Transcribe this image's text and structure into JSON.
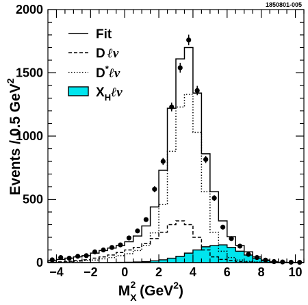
{
  "figure_id": "1850801-005",
  "chart_data": {
    "type": "line",
    "xlabel": "M_X^2 (GeV^2)",
    "ylabel": "Events / 0.5 GeV^2",
    "xlim": [
      -4.5,
      10.5
    ],
    "ylim": [
      0,
      2000
    ],
    "x_ticks": [
      "-4",
      "-2",
      "0",
      "2",
      "4",
      "6",
      "8",
      "10"
    ],
    "y_ticks": [
      "0",
      "500",
      "1000",
      "1500",
      "2000"
    ],
    "x_minor_step": 0.5,
    "y_minor_step": 100,
    "bin_edges": [
      -4.5,
      -4.0,
      -3.5,
      -3.0,
      -2.5,
      -2.0,
      -1.5,
      -1.0,
      -0.5,
      0.0,
      0.5,
      1.0,
      1.5,
      2.0,
      2.5,
      3.0,
      3.5,
      4.0,
      4.5,
      5.0,
      5.5,
      6.0,
      6.5,
      7.0,
      7.5,
      8.0,
      8.5,
      9.0,
      9.5,
      10.0,
      10.5
    ],
    "series": [
      {
        "name": "Fit",
        "kind": "step",
        "style": "solid",
        "values": [
          15,
          25,
          35,
          45,
          55,
          75,
          95,
          115,
          135,
          165,
          210,
          290,
          440,
          730,
          1220,
          1610,
          1700,
          1340,
          860,
          560,
          330,
          205,
          135,
          85,
          45,
          20,
          6,
          3,
          1,
          0
        ]
      },
      {
        "name": "Dℓν",
        "kind": "step",
        "style": "dashed",
        "values": [
          3,
          6,
          10,
          16,
          22,
          35,
          45,
          60,
          80,
          100,
          120,
          150,
          190,
          240,
          300,
          330,
          300,
          200,
          100,
          45,
          25,
          15,
          8,
          5,
          3,
          1,
          0,
          0,
          0,
          0
        ]
      },
      {
        "name": "D*ℓν",
        "kind": "step",
        "style": "dotted",
        "values": [
          2,
          4,
          6,
          10,
          15,
          20,
          30,
          40,
          55,
          70,
          95,
          135,
          235,
          460,
          880,
          1230,
          1330,
          1030,
          560,
          240,
          90,
          40,
          20,
          10,
          5,
          2,
          0,
          0,
          0,
          0
        ]
      },
      {
        "name": "X_Hℓν",
        "kind": "filled-step",
        "color": "#00e5ee",
        "values": [
          0,
          0,
          0,
          0,
          0,
          0,
          0,
          1,
          2,
          3,
          5,
          8,
          14,
          22,
          35,
          50,
          75,
          100,
          125,
          135,
          140,
          120,
          90,
          60,
          35,
          15,
          5,
          1,
          0,
          0
        ]
      },
      {
        "name": "Data",
        "kind": "points-with-errors",
        "x": [
          -4.25,
          -3.75,
          -3.25,
          -2.75,
          -2.25,
          -1.75,
          -1.25,
          -0.75,
          -0.25,
          0.25,
          0.75,
          1.25,
          1.75,
          2.25,
          2.75,
          3.25,
          3.75,
          4.25,
          4.75,
          5.25,
          5.75,
          6.25,
          6.75,
          7.25,
          7.75,
          8.25,
          8.75,
          9.25,
          9.75,
          10.25
        ],
        "y": [
          22,
          40,
          35,
          50,
          55,
          85,
          100,
          120,
          140,
          195,
          250,
          340,
          580,
          800,
          1230,
          1540,
          1760,
          1360,
          815,
          510,
          280,
          190,
          130,
          65,
          40,
          20,
          8,
          5,
          3,
          2
        ],
        "yerr": [
          6,
          7,
          7,
          8,
          8,
          10,
          10,
          11,
          12,
          14,
          16,
          18,
          24,
          28,
          35,
          39,
          42,
          37,
          28,
          23,
          17,
          14,
          12,
          8,
          7,
          5,
          3,
          2,
          2,
          1
        ]
      }
    ],
    "legend": {
      "placement": "top-left",
      "entries": [
        {
          "label": "Fit",
          "style": "solid"
        },
        {
          "label": "Dℓν",
          "style": "dashed"
        },
        {
          "label": "D*ℓν",
          "style": "dotted"
        },
        {
          "label": "X_Hℓν",
          "style": "filled",
          "color": "#00e5ee"
        }
      ]
    }
  }
}
